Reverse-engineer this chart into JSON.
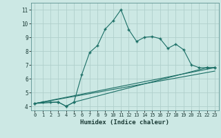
{
  "xlabel": "Humidex (Indice chaleur)",
  "background_color": "#cce8e4",
  "grid_color": "#b0d0cc",
  "line_color": "#1a6e65",
  "xlim": [
    -0.5,
    23.5
  ],
  "ylim": [
    3.7,
    11.5
  ],
  "xticks": [
    0,
    1,
    2,
    3,
    4,
    5,
    6,
    7,
    8,
    9,
    10,
    11,
    12,
    13,
    14,
    15,
    16,
    17,
    18,
    19,
    20,
    21,
    22,
    23
  ],
  "yticks": [
    4,
    5,
    6,
    7,
    8,
    9,
    10,
    11
  ],
  "line1_x": [
    0,
    1,
    2,
    3,
    4,
    5,
    6,
    7,
    8,
    9,
    10,
    11,
    12,
    13,
    14,
    15,
    16,
    17,
    18,
    19,
    20,
    21,
    22,
    23
  ],
  "line1_y": [
    4.2,
    4.3,
    4.3,
    4.3,
    4.0,
    4.3,
    6.3,
    7.9,
    8.4,
    9.6,
    10.2,
    11.0,
    9.55,
    8.7,
    9.0,
    9.05,
    8.9,
    8.2,
    8.5,
    8.1,
    7.0,
    6.8,
    6.8,
    6.8
  ],
  "line2_x": [
    0,
    3,
    4,
    5,
    22,
    23
  ],
  "line2_y": [
    4.2,
    4.3,
    4.0,
    4.3,
    6.8,
    6.8
  ],
  "line3_x": [
    0,
    23
  ],
  "line3_y": [
    4.2,
    6.55
  ],
  "line4_x": [
    0,
    23
  ],
  "line4_y": [
    4.2,
    6.8
  ]
}
